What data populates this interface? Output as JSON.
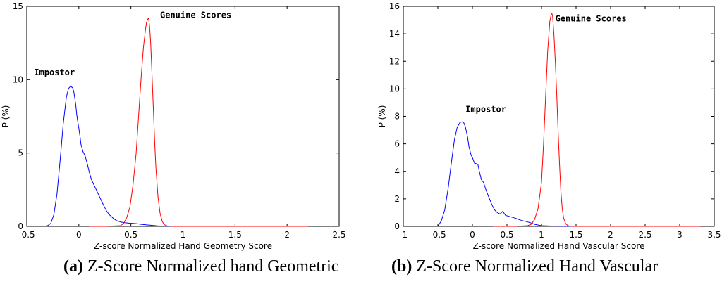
{
  "chart_data": [
    {
      "type": "line",
      "caption_tag": "(a)",
      "caption_text": " Z-Score Normalized hand Geometric",
      "xlabel": "Z-score Normalized Hand Geometry Score",
      "ylabel": "P (%)",
      "xlim": [
        -0.5,
        2.5
      ],
      "ylim": [
        0,
        15
      ],
      "xticks": [
        -0.5,
        0,
        0.5,
        1,
        1.5,
        2,
        2.5
      ],
      "xtick_labels": [
        "-0.5",
        "0",
        "0.5",
        "1",
        "1.5",
        "2",
        "2.5"
      ],
      "yticks": [
        0,
        5,
        10,
        15
      ],
      "ytick_labels": [
        "0",
        "5",
        "10",
        "15"
      ],
      "series": [
        {
          "label": "Impostor",
          "color": "#0000ff",
          "x": [
            -0.34,
            -0.3,
            -0.27,
            -0.24,
            -0.21,
            -0.18,
            -0.15,
            -0.12,
            -0.1,
            -0.08,
            -0.06,
            -0.05,
            -0.04,
            -0.03,
            -0.02,
            -0.01,
            0.0,
            0.01,
            0.02,
            0.04,
            0.06,
            0.08,
            0.1,
            0.12,
            0.14,
            0.16,
            0.18,
            0.2,
            0.22,
            0.24,
            0.27,
            0.3,
            0.33,
            0.36,
            0.4,
            0.44,
            0.48,
            0.52,
            0.56,
            0.6,
            0.65,
            0.7,
            0.75,
            0.8,
            0.85,
            0.9,
            1.0
          ],
          "y": [
            0.0,
            0.05,
            0.2,
            0.8,
            2.2,
            4.5,
            7.0,
            8.8,
            9.4,
            9.55,
            9.45,
            9.2,
            8.8,
            8.3,
            7.6,
            7.1,
            6.7,
            6.2,
            5.6,
            5.1,
            4.8,
            4.3,
            3.7,
            3.2,
            2.9,
            2.6,
            2.3,
            2.0,
            1.7,
            1.4,
            1.0,
            0.75,
            0.55,
            0.4,
            0.3,
            0.25,
            0.22,
            0.2,
            0.18,
            0.14,
            0.1,
            0.07,
            0.04,
            0.02,
            0.01,
            0.0,
            0.0
          ]
        },
        {
          "label": "Genuine Scores",
          "color": "#ff0000",
          "x": [
            0.1,
            0.25,
            0.4,
            0.43,
            0.46,
            0.49,
            0.52,
            0.55,
            0.58,
            0.6,
            0.62,
            0.64,
            0.65,
            0.66,
            0.67,
            0.68,
            0.69,
            0.7,
            0.71,
            0.72,
            0.73,
            0.74,
            0.76,
            0.78,
            0.8,
            0.82,
            0.85,
            0.9,
            0.95,
            1.1,
            1.4,
            2.2
          ],
          "y": [
            0.0,
            0.0,
            0.05,
            0.2,
            0.6,
            1.3,
            2.8,
            5.0,
            8.2,
            10.3,
            12.2,
            13.4,
            13.9,
            14.1,
            14.2,
            13.6,
            12.5,
            10.8,
            9.0,
            7.2,
            5.5,
            4.0,
            2.0,
            0.9,
            0.35,
            0.12,
            0.03,
            0.0,
            0.0,
            0.0,
            0.0,
            0.0
          ]
        }
      ],
      "annotations": [
        {
          "text": "Impostor",
          "x": -0.43,
          "y": 10.3
        },
        {
          "text": "Genuine Scores",
          "x": 0.78,
          "y": 14.2
        }
      ]
    },
    {
      "type": "line",
      "caption_tag": "(b)",
      "caption_text": " Z-Score Normalized Hand Vascular",
      "xlabel": "Z-score Normalized Hand Vascular Score",
      "ylabel": "P (%)",
      "xlim": [
        -1,
        3.5
      ],
      "ylim": [
        0,
        16
      ],
      "xticks": [
        -1,
        -0.5,
        0,
        0.5,
        1,
        1.5,
        2,
        2.5,
        3,
        3.5
      ],
      "xtick_labels": [
        "-1",
        "-0.5",
        "0",
        "0.5",
        "1",
        "1.5",
        "2",
        "2.5",
        "3",
        "3.5"
      ],
      "yticks": [
        0,
        2,
        4,
        6,
        8,
        10,
        12,
        14,
        16
      ],
      "ytick_labels": [
        "0",
        "2",
        "4",
        "6",
        "8",
        "10",
        "12",
        "14",
        "16"
      ],
      "series": [
        {
          "label": "Impostor",
          "color": "#0000ff",
          "x": [
            -0.5,
            -0.45,
            -0.4,
            -0.35,
            -0.3,
            -0.26,
            -0.22,
            -0.18,
            -0.15,
            -0.12,
            -0.1,
            -0.07,
            -0.05,
            -0.02,
            0.0,
            0.03,
            0.06,
            0.08,
            0.1,
            0.13,
            0.16,
            0.2,
            0.24,
            0.28,
            0.32,
            0.36,
            0.4,
            0.44,
            0.48,
            0.55,
            0.62,
            0.7,
            0.78,
            0.85,
            0.9,
            1.0,
            1.2,
            1.5,
            3.2
          ],
          "y": [
            0.0,
            0.4,
            1.2,
            2.8,
            4.8,
            6.3,
            7.2,
            7.55,
            7.6,
            7.5,
            7.2,
            6.5,
            5.8,
            5.2,
            5.0,
            4.6,
            4.55,
            4.5,
            4.0,
            3.4,
            3.2,
            2.6,
            2.1,
            1.6,
            1.2,
            1.0,
            0.9,
            1.1,
            0.8,
            0.7,
            0.6,
            0.45,
            0.35,
            0.25,
            0.15,
            0.05,
            0.01,
            0.0,
            0.0
          ]
        },
        {
          "label": "Genuine Scores",
          "color": "#ff0000",
          "x": [
            0.3,
            0.6,
            0.8,
            0.85,
            0.9,
            0.95,
            1.0,
            1.03,
            1.06,
            1.09,
            1.12,
            1.14,
            1.15,
            1.16,
            1.18,
            1.2,
            1.22,
            1.24,
            1.26,
            1.28,
            1.3,
            1.32,
            1.35,
            1.38,
            1.42,
            1.48,
            1.6,
            2.0,
            3.3
          ],
          "y": [
            0.0,
            0.0,
            0.05,
            0.15,
            0.5,
            1.3,
            3.2,
            6.0,
            9.5,
            12.8,
            14.9,
            15.4,
            15.5,
            15.3,
            14.0,
            12.0,
            9.6,
            7.0,
            4.6,
            2.6,
            1.3,
            0.6,
            0.2,
            0.06,
            0.01,
            0.0,
            0.0,
            0.0,
            0.0
          ]
        }
      ],
      "annotations": [
        {
          "text": "Impostor",
          "x": -0.1,
          "y": 8.3
        },
        {
          "text": "Genuine Scores",
          "x": 1.2,
          "y": 14.9
        }
      ]
    }
  ]
}
